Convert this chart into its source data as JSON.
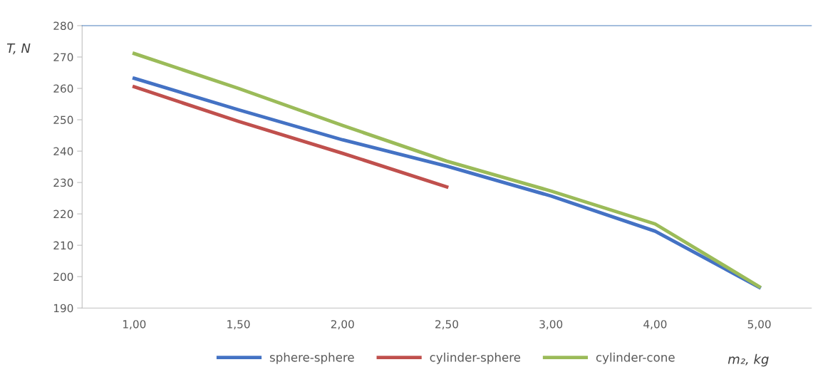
{
  "chart_data": {
    "type": "line",
    "ylabel": "T, N",
    "xlabel": "m₂, kg",
    "categories": [
      "1,00",
      "1,50",
      "2,00",
      "2,50",
      "3,00",
      "4,00",
      "5,00"
    ],
    "series": [
      {
        "name": "sphere-sphere",
        "color": "#4472c4",
        "values": [
          263.2,
          253.2,
          243.6,
          235.2,
          225.7,
          214.5,
          196.6
        ]
      },
      {
        "name": "cylinder-sphere",
        "color": "#c0504d",
        "values": [
          260.5,
          249.5,
          239.3,
          228.6,
          null,
          null,
          null
        ]
      },
      {
        "name": "cylinder-cone",
        "color": "#9bbb59",
        "values": [
          271.1,
          260,
          248.2,
          236.8,
          227.3,
          216.8,
          196.8
        ]
      }
    ],
    "ylim": [
      190,
      280
    ],
    "yticks": [
      190,
      200,
      210,
      220,
      230,
      240,
      250,
      260,
      270,
      280
    ],
    "grid": false,
    "legend": "bottom",
    "marker": "none",
    "line_style": "solid"
  }
}
